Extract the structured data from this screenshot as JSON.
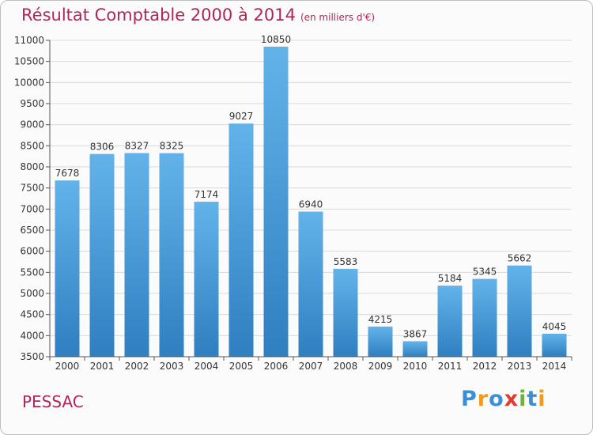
{
  "title": "Résultat Comptable 2000 à 2014",
  "subtitle": "(en milliers d'€)",
  "place": "PESSAC",
  "brand": {
    "text": "Proxiti",
    "letters": [
      {
        "ch": "P",
        "color": "#3a8fd6"
      },
      {
        "ch": "r",
        "color": "#f29a1f"
      },
      {
        "ch": "o",
        "color": "#3a8fd6"
      },
      {
        "ch": "x",
        "color": "#e23a2e"
      },
      {
        "ch": "i",
        "color": "#6ab43e"
      },
      {
        "ch": "t",
        "color": "#3a8fd6"
      },
      {
        "ch": "i",
        "color": "#f29a1f"
      }
    ]
  },
  "colors": {
    "bar_top": "#63b3ea",
    "bar_bottom": "#2f7fc1",
    "title": "#b0245a",
    "grid": "#d9d9d9"
  },
  "chart_data": {
    "type": "bar",
    "categories": [
      "2000",
      "2001",
      "2002",
      "2003",
      "2004",
      "2005",
      "2006",
      "2007",
      "2008",
      "2009",
      "2010",
      "2011",
      "2012",
      "2013",
      "2014"
    ],
    "values": [
      7678,
      8306,
      8327,
      8325,
      7174,
      9027,
      10850,
      6940,
      5583,
      4215,
      3867,
      5184,
      5345,
      5662,
      4045
    ],
    "title": "Résultat Comptable 2000 à 2014",
    "ylim": [
      3500,
      11000
    ],
    "yticks": [
      3500,
      4000,
      4500,
      5000,
      5500,
      6000,
      6500,
      7000,
      7500,
      8000,
      8500,
      9000,
      9500,
      10000,
      10500,
      11000
    ],
    "grid": true,
    "data_labels": true
  }
}
